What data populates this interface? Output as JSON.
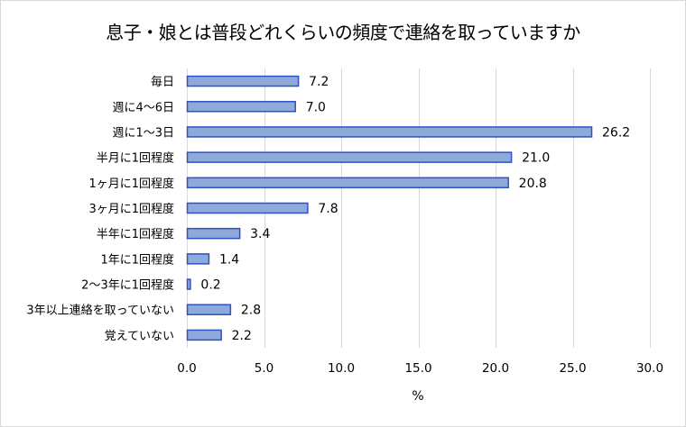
{
  "chart_data": {
    "type": "bar",
    "orientation": "horizontal",
    "title": "息子・娘とは普段どれくらいの頻度で連絡を取っていますか",
    "xlabel": "%",
    "ylabel": "",
    "xlim": [
      0,
      30
    ],
    "xticks": [
      0,
      5,
      10,
      15,
      20,
      25,
      30
    ],
    "xtick_labels": [
      "0.0",
      "5.0",
      "10.0",
      "15.0",
      "20.0",
      "25.0",
      "30.0"
    ],
    "grid": true,
    "categories": [
      "毎日",
      "週に4〜6日",
      "週に1〜3日",
      "半月に1回程度",
      "1ヶ月に1回程度",
      "3ヶ月に1回程度",
      "半年に1回程度",
      "1年に1回程度",
      "2〜3年に1回程度",
      "3年以上連絡を取っていない",
      "覚えていない"
    ],
    "values": [
      7.2,
      7.0,
      26.2,
      21.0,
      20.8,
      7.8,
      3.4,
      1.4,
      0.2,
      2.8,
      2.2
    ],
    "value_labels": [
      "7.2",
      "7.0",
      "26.2",
      "21.0",
      "20.8",
      "7.8",
      "3.4",
      "1.4",
      "0.2",
      "2.8",
      "2.2"
    ],
    "colors": {
      "bar_fill": "#8eaadb",
      "bar_stroke": "#2f52c4",
      "grid": "#d9d9d9"
    }
  }
}
